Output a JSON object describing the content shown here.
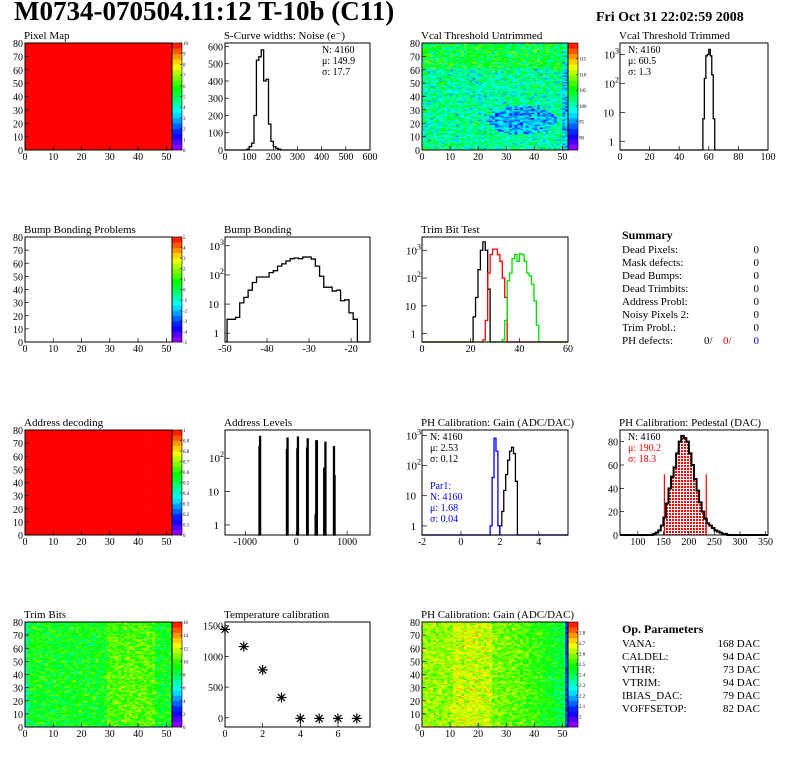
{
  "header": {
    "title": "M0734-070504.11:12 T-10b (C11)",
    "date": "Fri Oct 31 22:02:59 2008"
  },
  "summary": {
    "title": "Summary",
    "rows": [
      {
        "label": "Dead Pixels:",
        "value": "0"
      },
      {
        "label": "Mask defects:",
        "value": "0"
      },
      {
        "label": "Dead Bumps:",
        "value": "0"
      },
      {
        "label": "Dead Trimbits:",
        "value": "0"
      },
      {
        "label": "Address Probl:",
        "value": "0"
      },
      {
        "label": "Noisy Pixels 2:",
        "value": "0"
      },
      {
        "label": "Trim Probl.:",
        "value": "0"
      }
    ],
    "ph_defects": {
      "label": "PH defects:",
      "values": [
        "0/",
        "0/",
        "0"
      ],
      "colors": [
        "#000000",
        "#ff0000",
        "#0000ff"
      ]
    }
  },
  "op_parameters": {
    "title": "Op. Parameters",
    "rows": [
      {
        "label": "VANA:",
        "value": "168 DAC"
      },
      {
        "label": "CALDEL:",
        "value": "94 DAC"
      },
      {
        "label": "VTHR:",
        "value": "73 DAC"
      },
      {
        "label": "VTRIM:",
        "value": "94 DAC"
      },
      {
        "label": "IBIAS_DAC:",
        "value": "79 DAC"
      },
      {
        "label": "VOFFSETOP:",
        "value": "82 DAC"
      }
    ]
  },
  "chart_data": [
    {
      "type": "heatmap",
      "title": "Pixel Map",
      "xlim": [
        0,
        52
      ],
      "ylim": [
        0,
        80
      ],
      "xticks": [
        0,
        10,
        20,
        30,
        40,
        50
      ],
      "yticks": [
        0,
        10,
        20,
        30,
        40,
        50,
        60,
        70,
        80
      ],
      "zlim": [
        0,
        10
      ],
      "zticks": [
        0,
        1,
        2,
        3,
        4,
        5,
        6,
        7,
        8,
        9,
        10
      ],
      "fill": "uniform",
      "z_value": 10
    },
    {
      "type": "bar",
      "title": "S-Curve widths: Noise (e⁻)",
      "scale": "linear",
      "xlim": [
        0,
        600
      ],
      "ylim": [
        0,
        620
      ],
      "xticks": [
        0,
        100,
        200,
        300,
        400,
        500,
        600
      ],
      "yticks": [
        0,
        100,
        200,
        300,
        400,
        500,
        600
      ],
      "stats": [
        "N: 4160",
        "μ: 149.9",
        "σ: 17.7"
      ],
      "stats_pos": "top-right",
      "series": [
        {
          "color": "#000000",
          "x_start": 90,
          "bin_width": 10,
          "values": [
            5,
            20,
            40,
            200,
            520,
            540,
            580,
            400,
            410,
            150,
            50,
            20,
            10,
            5
          ]
        }
      ]
    },
    {
      "type": "heatmap",
      "title": "Vcal Threshold Untrimmed",
      "xlim": [
        0,
        52
      ],
      "ylim": [
        0,
        80
      ],
      "xticks": [
        0,
        10,
        20,
        30,
        40,
        50
      ],
      "yticks": [
        0,
        10,
        20,
        30,
        40,
        50,
        60,
        70,
        80
      ],
      "zlim": [
        86,
        120
      ],
      "zticks": [
        90,
        95,
        100,
        105,
        110,
        115
      ],
      "fill": "noise",
      "z_typical": 101
    },
    {
      "type": "bar",
      "title": "Vcal Threshold Trimmed",
      "scale": "log",
      "xlim": [
        0,
        100
      ],
      "ylim": [
        0.5,
        2500
      ],
      "xticks": [
        0,
        20,
        40,
        60,
        80,
        100
      ],
      "yticks": [
        "1",
        "10",
        "10^2",
        "10^3"
      ],
      "stats": [
        "N: 4160",
        "μ: 60.5",
        "σ:  1.3"
      ],
      "stats_pos": "top-left",
      "series": [
        {
          "color": "#000000",
          "x_start": 56,
          "bin_width": 1,
          "values": [
            6,
            150,
            900,
            1000,
            1500,
            900,
            200,
            6,
            0,
            0
          ]
        }
      ]
    },
    {
      "type": "heatmap",
      "title": "Bump Bonding Problems",
      "xlim": [
        0,
        52
      ],
      "ylim": [
        0,
        80
      ],
      "xticks": [
        0,
        10,
        20,
        30,
        40,
        50
      ],
      "yticks": [
        0,
        10,
        20,
        30,
        40,
        50,
        60,
        70,
        80
      ],
      "zlim": [
        -5,
        5
      ],
      "zticks": [
        -5,
        -4,
        -3,
        -2,
        -1,
        0,
        1,
        2,
        3,
        4,
        5
      ],
      "fill": "empty"
    },
    {
      "type": "bar",
      "title": "Bump Bonding",
      "scale": "log",
      "xlim": [
        -50,
        -15.5
      ],
      "ylim": [
        0.5,
        2000
      ],
      "xticks": [
        -50,
        -40,
        -30,
        -20
      ],
      "yticks": [
        "1",
        "10",
        "10^2",
        "10^3"
      ],
      "series": [
        {
          "color": "#000000",
          "x_start": -49.5,
          "bin_width": 1,
          "values": [
            3,
            3,
            3.5,
            11,
            17,
            30,
            55,
            85,
            85,
            85,
            120,
            140,
            200,
            240,
            300,
            360,
            380,
            360,
            410,
            410,
            350,
            200,
            90,
            38,
            38,
            28,
            30,
            13,
            14,
            5,
            3
          ]
        }
      ]
    },
    {
      "type": "bar",
      "title": "Trim Bit Test",
      "scale": "log",
      "xlim": [
        0,
        60
      ],
      "ylim": [
        0.5,
        3000
      ],
      "xticks": [
        0,
        20,
        40,
        60
      ],
      "yticks": [
        "1",
        "10",
        "10^2",
        "10^3"
      ],
      "series": [
        {
          "color": "#000000",
          "x_start": 20,
          "bin_width": 1,
          "values": [
            0.4,
            4,
            20,
            200,
            1000,
            2000,
            1000,
            40,
            0
          ]
        },
        {
          "color": "#ff0000",
          "x_start": 25,
          "bin_width": 1,
          "values": [
            0.6,
            3,
            150,
            700,
            1100,
            1100,
            700,
            400,
            100,
            20
          ]
        },
        {
          "color": "#00e000",
          "x_start": 33,
          "bin_width": 1,
          "values": [
            0.6,
            3,
            80,
            150,
            500,
            700,
            400,
            750,
            700,
            400,
            150,
            120,
            60,
            15,
            2
          ]
        }
      ]
    },
    {
      "type": "heatmap",
      "title": "Address decoding",
      "xlim": [
        0,
        52
      ],
      "ylim": [
        0,
        80
      ],
      "xticks": [
        0,
        10,
        20,
        30,
        40,
        50
      ],
      "yticks": [
        0,
        10,
        20,
        30,
        40,
        50,
        60,
        70,
        80
      ],
      "zlim": [
        0,
        1
      ],
      "zticks": [
        0,
        0.1,
        0.2,
        0.3,
        0.4,
        0.5,
        0.6,
        0.7,
        0.8,
        0.9,
        1
      ],
      "fill": "uniform",
      "z_value": 1
    },
    {
      "type": "bar",
      "title": "Address Levels",
      "scale": "log",
      "xlim": [
        -1400,
        1450
      ],
      "ylim": [
        0.5,
        700
      ],
      "xticks": [
        -1000,
        0,
        1000
      ],
      "yticks": [
        "1",
        "10",
        "10^2"
      ],
      "series": [
        {
          "color": "#000000",
          "bin_width": 12,
          "bins": [
            [
              -732,
              220
            ],
            [
              -720,
              450
            ],
            [
              -192,
              180
            ],
            [
              -180,
              400
            ],
            [
              12,
              190
            ],
            [
              24,
              430
            ],
            [
              204,
              200
            ],
            [
              216,
              380
            ],
            [
              372,
              2
            ],
            [
              384,
              330
            ],
            [
              396,
              330
            ],
            [
              540,
              50
            ],
            [
              552,
              7
            ],
            [
              564,
              300
            ],
            [
              732,
              220
            ],
            [
              744,
              30
            ]
          ]
        }
      ]
    },
    {
      "type": "bar",
      "title": "PH Calibration: Gain (ADC/DAC)",
      "scale": "log",
      "xlim": [
        -2,
        5.5
      ],
      "ylim": [
        0.5,
        1500
      ],
      "xticks": [
        -2,
        0,
        2,
        4
      ],
      "yticks": [
        "1",
        "10",
        "10^2",
        "10^3"
      ],
      "stats": [
        "N: 4160",
        "μ: 2.53",
        "σ: 0.12"
      ],
      "stats_pos": "top-left",
      "stats2": [
        "Par1:",
        "N: 4160",
        "μ: 1.68",
        "σ: 0.04"
      ],
      "stats2_color": "#0000ff",
      "series": [
        {
          "color": "#000000",
          "x_start": 1.9,
          "bin_width": 0.1,
          "values": [
            0.4,
            1,
            3,
            15,
            50,
            150,
            300,
            400,
            250,
            30,
            0
          ]
        },
        {
          "color": "#0000ff",
          "x_start": 1.5,
          "bin_width": 0.1,
          "values": [
            1,
            40,
            800,
            300,
            1,
            0
          ]
        }
      ]
    },
    {
      "type": "bar",
      "title": "PH Calibration: Pedestal (DAC)",
      "scale": "linear",
      "xlim": [
        65,
        355
      ],
      "ylim": [
        0,
        90
      ],
      "xticks": [
        100,
        150,
        200,
        250,
        300,
        350
      ],
      "yticks": [
        0,
        20,
        40,
        60,
        80
      ],
      "stats": [
        "N: 4160",
        "μ: 190.2",
        "σ: 18.3"
      ],
      "stats_colors": [
        "#000000",
        "#ff0000",
        "#ff0000"
      ],
      "stats_pos": "top-left",
      "fit_range": [
        152,
        234
      ],
      "fit_color": "#ff0000",
      "fit_line_height": 52,
      "series": [
        {
          "color": "#000000",
          "x_start": 130,
          "bin_width": 5,
          "values": [
            1,
            2,
            4,
            8,
            15,
            27,
            40,
            50,
            58,
            70,
            80,
            85,
            83,
            80,
            70,
            60,
            48,
            38,
            28,
            20,
            14,
            10,
            8,
            6,
            4,
            3,
            2,
            1,
            1,
            0
          ]
        }
      ]
    },
    {
      "type": "heatmap",
      "title": "Trim Bits",
      "xlim": [
        0,
        52
      ],
      "ylim": [
        0,
        80
      ],
      "xticks": [
        0,
        10,
        20,
        30,
        40,
        50
      ],
      "yticks": [
        0,
        10,
        20,
        30,
        40,
        50,
        60,
        70,
        80
      ],
      "zlim": [
        0,
        16
      ],
      "zticks": [
        0,
        2,
        4,
        6,
        8,
        10,
        12,
        14,
        16
      ],
      "fill": "noise",
      "z_typical": 9
    },
    {
      "type": "scatter",
      "title": "Temperature calibration",
      "xlim": [
        0,
        7.7
      ],
      "ylim": [
        -150,
        1560
      ],
      "xticks": [
        0,
        2,
        4,
        6
      ],
      "yticks": [
        0,
        500,
        1000,
        1500
      ],
      "points": [
        [
          0,
          1440
        ],
        [
          1,
          1160
        ],
        [
          2,
          780
        ],
        [
          3,
          330
        ],
        [
          4,
          -10
        ],
        [
          5,
          -10
        ],
        [
          6,
          -10
        ],
        [
          7,
          -10
        ]
      ]
    },
    {
      "type": "heatmap",
      "title": "PH Calibration: Gain (ADC/DAC)",
      "xlim": [
        0,
        52
      ],
      "ylim": [
        0,
        80
      ],
      "xticks": [
        0,
        10,
        20,
        30,
        40,
        50
      ],
      "yticks": [
        0,
        10,
        20,
        30,
        40,
        50,
        60,
        70,
        80
      ],
      "zlim": [
        1.9,
        2.9
      ],
      "zticks": [
        2,
        2.1,
        2.2,
        2.3,
        2.4,
        2.5,
        2.6,
        2.7,
        2.8
      ],
      "fill": "noise",
      "z_typical": 2.6
    }
  ]
}
